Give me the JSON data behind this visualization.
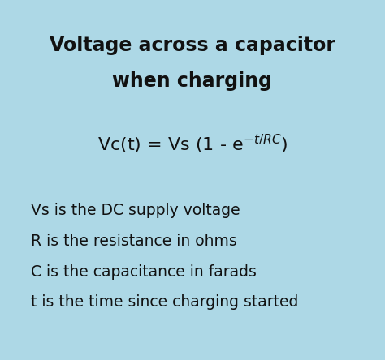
{
  "background_color": "#add8e6",
  "title_line1": "Voltage across a capacitor",
  "title_line2": "when charging",
  "title_fontsize": 17,
  "title_fontweight": "bold",
  "formula_fontsize": 16,
  "desc_fontsize": 13.5,
  "desc_lines": [
    "Vs is the DC supply voltage",
    "R is the resistance in ohms",
    "C is the capacitance in farads",
    "t is the time since charging started"
  ],
  "text_color": "#111111",
  "figwidth": 4.74,
  "figheight": 4.44,
  "dpi": 100
}
